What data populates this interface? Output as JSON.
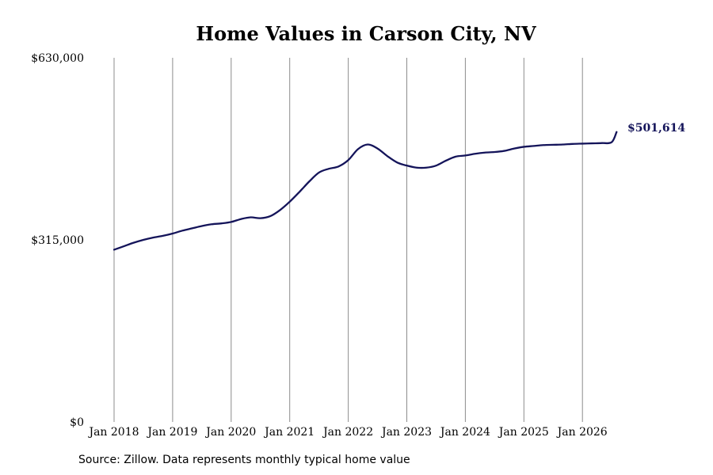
{
  "chart_data": {
    "type": "line",
    "title": "Home Values in Carson City, NV",
    "xlabel": "",
    "ylabel": "",
    "ylim": [
      0,
      630000
    ],
    "y_ticks": [
      {
        "value": 0,
        "label": "$0"
      },
      {
        "value": 315000,
        "label": "$315,000"
      },
      {
        "value": 630000,
        "label": "$630,000"
      }
    ],
    "x_ticks": [
      {
        "value": "2018-01",
        "label": "Jan 2018"
      },
      {
        "value": "2019-01",
        "label": "Jan 2019"
      },
      {
        "value": "2020-01",
        "label": "Jan 2020"
      },
      {
        "value": "2021-01",
        "label": "Jan 2021"
      },
      {
        "value": "2022-01",
        "label": "Jan 2022"
      },
      {
        "value": "2023-01",
        "label": "Jan 2023"
      },
      {
        "value": "2024-01",
        "label": "Jan 2024"
      },
      {
        "value": "2025-01",
        "label": "Jan 2025"
      },
      {
        "value": "2026-01",
        "label": "Jan 2026"
      }
    ],
    "grid": "vertical",
    "line_color": "#14145a",
    "end_label": "$501,614",
    "series": [
      {
        "x": [
          "2018-01",
          "2018-03",
          "2018-05",
          "2018-07",
          "2018-09",
          "2018-11",
          "2019-01",
          "2019-03",
          "2019-05",
          "2019-07",
          "2019-09",
          "2019-11",
          "2020-01",
          "2020-03",
          "2020-05",
          "2020-07",
          "2020-09",
          "2020-11",
          "2021-01",
          "2021-03",
          "2021-05",
          "2021-07",
          "2021-09",
          "2021-11",
          "2022-01",
          "2022-03",
          "2022-05",
          "2022-07",
          "2022-09",
          "2022-11",
          "2023-01",
          "2023-03",
          "2023-05",
          "2023-07",
          "2023-09",
          "2023-11",
          "2024-01",
          "2024-03",
          "2024-05",
          "2024-07",
          "2024-09",
          "2024-11",
          "2025-01",
          "2025-03",
          "2025-05",
          "2025-07",
          "2025-09",
          "2025-11",
          "2026-01",
          "2026-03",
          "2026-05",
          "2026-07",
          "2026-08"
        ],
        "values": [
          298000,
          304000,
          310000,
          315000,
          319000,
          322000,
          326000,
          331000,
          335000,
          339000,
          342000,
          343500,
          346000,
          351000,
          354000,
          352500,
          356000,
          366500,
          381000,
          398000,
          416000,
          431500,
          438000,
          442000,
          453000,
          472000,
          480000,
          473000,
          460000,
          449000,
          443500,
          440000,
          440000,
          443500,
          452000,
          459000,
          461000,
          464000,
          466000,
          467000,
          469000,
          473000,
          476000,
          477500,
          479000,
          479500,
          480000,
          481000,
          481500,
          482000,
          482500,
          484000,
          501614
        ]
      }
    ]
  },
  "source_note": "Source: Zillow. Data represents monthly typical home value"
}
